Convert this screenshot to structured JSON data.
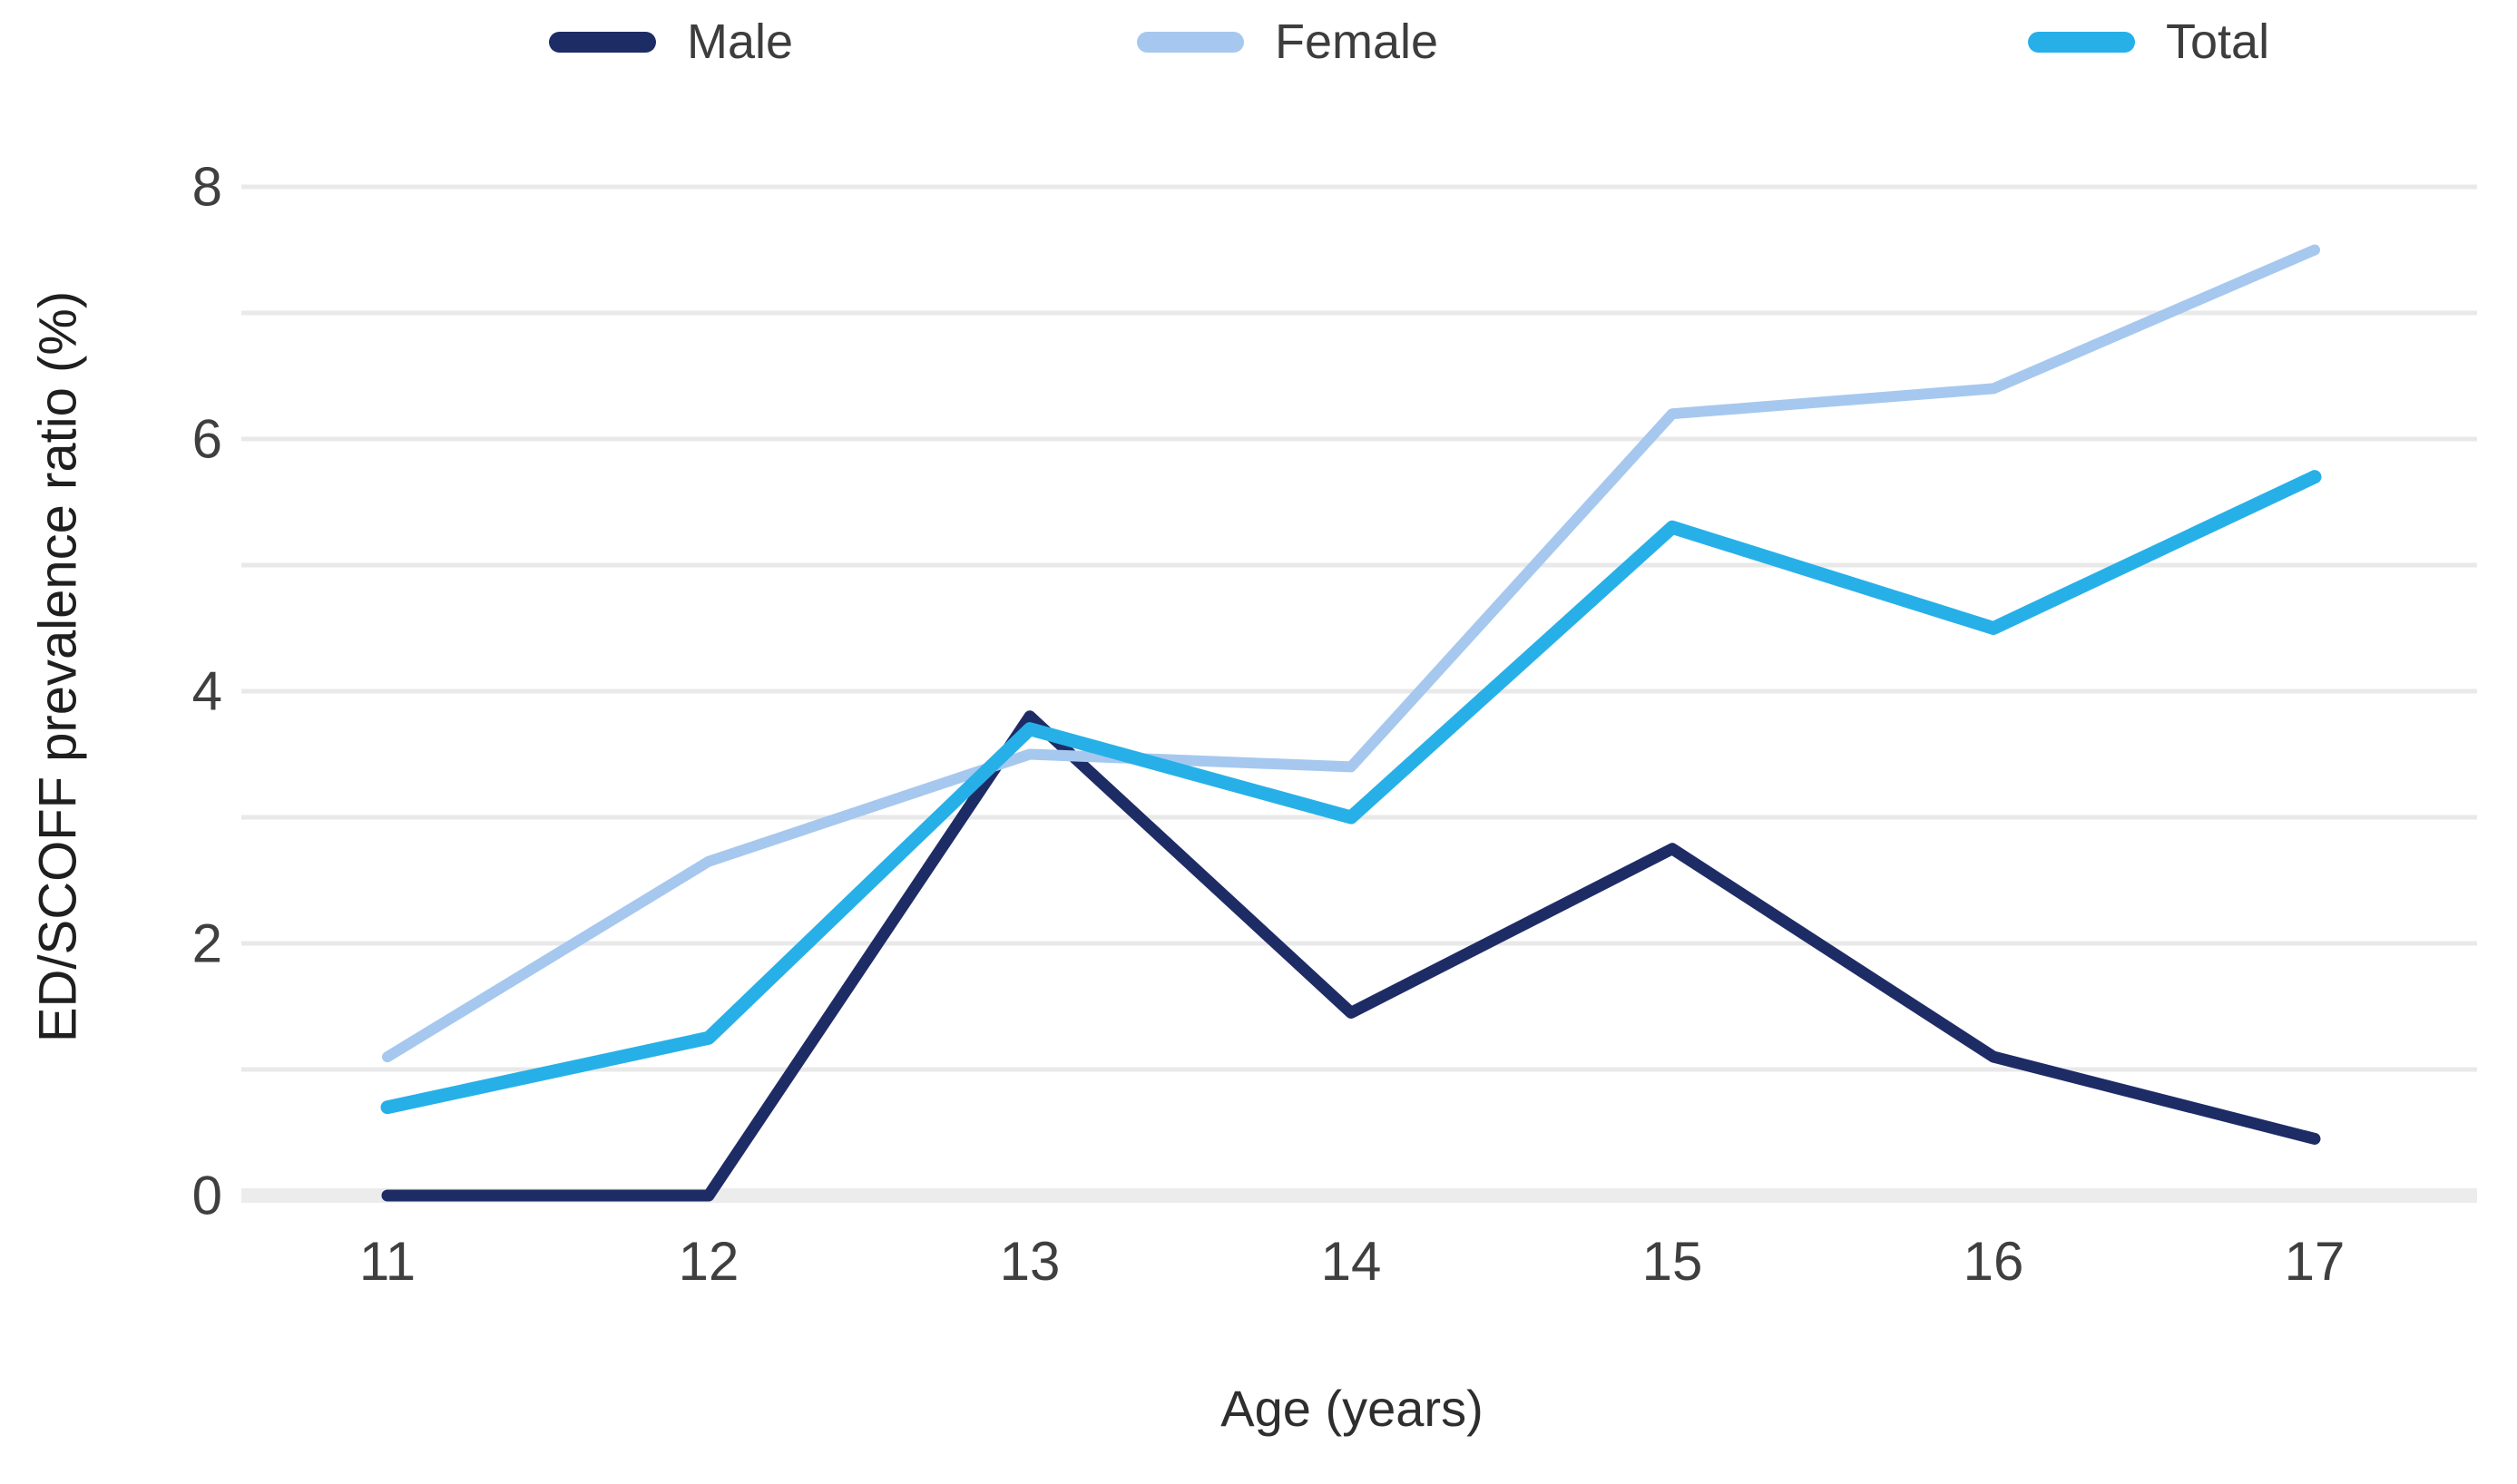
{
  "chart_data": {
    "type": "line",
    "x": [
      11,
      12,
      13,
      14,
      15,
      16,
      17
    ],
    "series": [
      {
        "name": "Male",
        "color": "#1e2c66",
        "values": [
          0,
          0,
          3.8,
          1.45,
          2.75,
          1.1,
          0.45
        ]
      },
      {
        "name": "Female",
        "color": "#a6c8ef",
        "values": [
          1.1,
          2.65,
          3.5,
          3.4,
          6.2,
          6.4,
          7.5
        ]
      },
      {
        "name": "Total",
        "color": "#27b0e8",
        "values": [
          0.7,
          1.25,
          3.7,
          3.0,
          5.3,
          4.5,
          5.7
        ]
      }
    ],
    "title": "",
    "xlabel": "Age (years)",
    "ylabel": "ED/SCOFF prevalence ratio (%)",
    "ylim": [
      0,
      8
    ],
    "yticks_labeled": [
      0,
      2,
      4,
      6,
      8
    ],
    "gridlines_every": 1,
    "grid": "horizontal",
    "legend_position": "top",
    "colors": {
      "gridline": "#e9e9e9",
      "zero_line": "#ececec",
      "tick_label": "#3f3f3f",
      "background": "#ffffff"
    }
  }
}
